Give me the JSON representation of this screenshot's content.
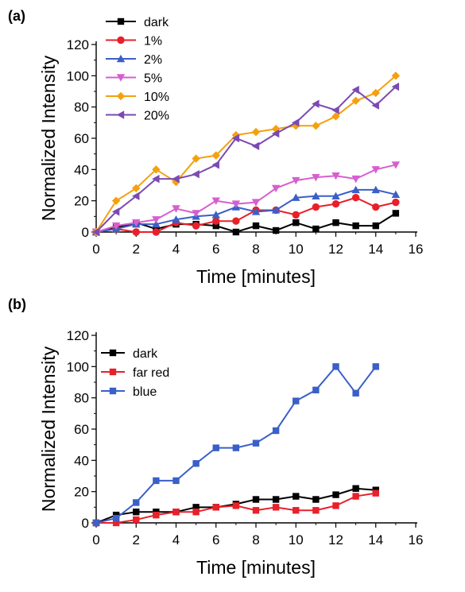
{
  "chart_data": [
    {
      "type": "line",
      "panel_label": "(a)",
      "xlabel": "Time [minutes]",
      "ylabel": "Normalized Intensity",
      "xlim": [
        0,
        16
      ],
      "ylim": [
        0,
        120
      ],
      "xticks": [
        0,
        2,
        4,
        6,
        8,
        10,
        12,
        14,
        16
      ],
      "yticks": [
        0,
        20,
        40,
        60,
        80,
        100,
        120
      ],
      "grid": false,
      "legend_position": "top-left",
      "x": [
        0,
        1,
        2,
        3,
        4,
        5,
        6,
        7,
        8,
        9,
        10,
        11,
        12,
        13,
        14,
        15
      ],
      "series": [
        {
          "name": "dark",
          "color": "#000000",
          "marker": "square",
          "values": [
            0,
            3,
            6,
            2,
            5,
            5,
            4,
            0,
            4,
            1,
            6,
            2,
            6,
            4,
            4,
            12
          ]
        },
        {
          "name": "1%",
          "color": "#e8202a",
          "marker": "circle",
          "values": [
            0,
            2,
            0,
            0,
            6,
            4,
            7,
            7,
            14,
            14,
            11,
            16,
            18,
            22,
            16,
            19
          ]
        },
        {
          "name": "2%",
          "color": "#3a5fc8",
          "marker": "triangle-up",
          "values": [
            0,
            2,
            5,
            5,
            8,
            10,
            11,
            16,
            13,
            14,
            22,
            23,
            23,
            27,
            27,
            24
          ]
        },
        {
          "name": "5%",
          "color": "#d65fd0",
          "marker": "triangle-down",
          "values": [
            0,
            4,
            6,
            8,
            15,
            12,
            20,
            18,
            19,
            28,
            33,
            35,
            36,
            34,
            40,
            43
          ]
        },
        {
          "name": "10%",
          "color": "#f5a00f",
          "marker": "diamond",
          "values": [
            0,
            20,
            28,
            40,
            32,
            47,
            49,
            62,
            64,
            66,
            68,
            68,
            74,
            84,
            89,
            100
          ]
        },
        {
          "name": "20%",
          "color": "#7b4ab3",
          "marker": "leftarrow",
          "values": [
            0,
            13,
            23,
            34,
            34,
            37,
            43,
            60,
            55,
            63,
            70,
            82,
            78,
            91,
            81,
            93
          ]
        }
      ]
    },
    {
      "type": "line",
      "panel_label": "(b)",
      "xlabel": "Time [minutes]",
      "ylabel": "Normalized Intensity",
      "xlim": [
        0,
        16
      ],
      "ylim": [
        0,
        120
      ],
      "xticks": [
        0,
        2,
        4,
        6,
        8,
        10,
        12,
        14,
        16
      ],
      "yticks": [
        0,
        20,
        40,
        60,
        80,
        100,
        120
      ],
      "grid": false,
      "legend_position": "top-left",
      "x": [
        0,
        1,
        2,
        3,
        4,
        5,
        6,
        7,
        8,
        9,
        10,
        11,
        12,
        13,
        14
      ],
      "series": [
        {
          "name": "dark",
          "color": "#000000",
          "marker": "square",
          "values": [
            0,
            5,
            7,
            7,
            7,
            10,
            10,
            12,
            15,
            15,
            17,
            15,
            18,
            22,
            21
          ]
        },
        {
          "name": "far red",
          "color": "#e8202a",
          "marker": "square",
          "values": [
            0,
            0,
            2,
            5,
            7,
            7,
            10,
            11,
            8,
            10,
            8,
            8,
            11,
            17,
            19
          ]
        },
        {
          "name": "blue",
          "color": "#3a5fc8",
          "marker": "square",
          "values": [
            0,
            3,
            13,
            27,
            27,
            38,
            48,
            48,
            51,
            59,
            78,
            85,
            100,
            83,
            100
          ]
        }
      ]
    }
  ]
}
